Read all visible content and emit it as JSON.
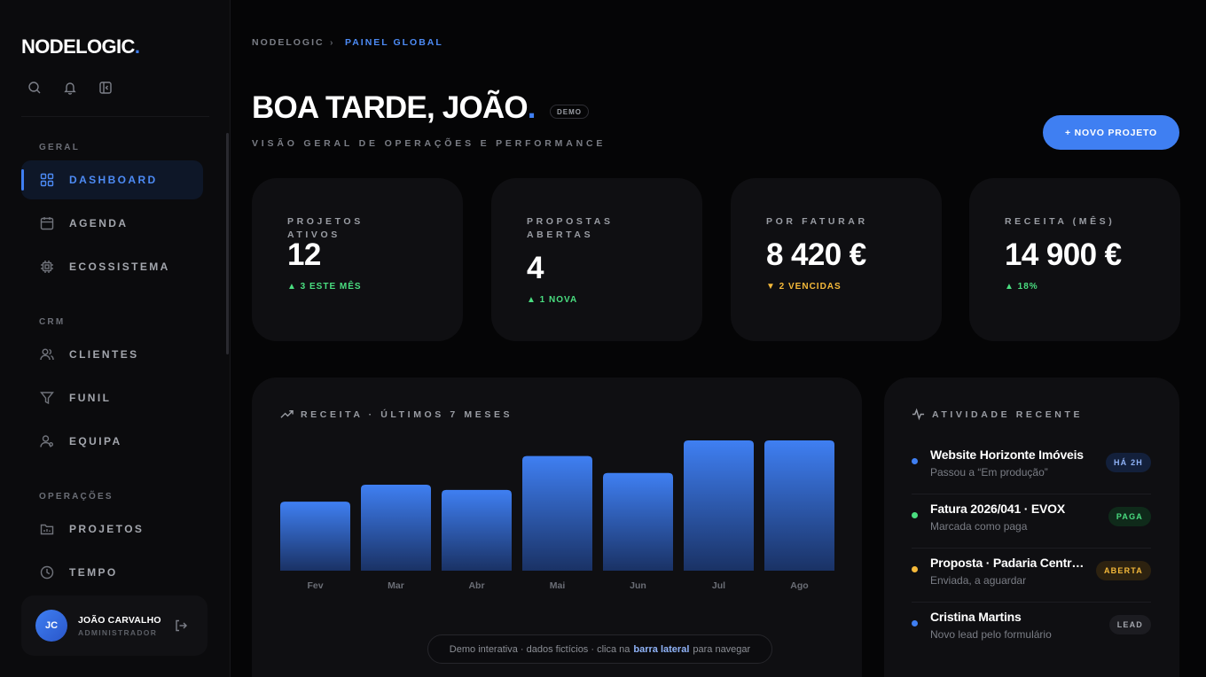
{
  "app": {
    "logo_text": "NODELOGIC",
    "logo_dot": ".",
    "accent": "#3f7ff2"
  },
  "sidebar": {
    "tools": [
      {
        "icon": "search-icon"
      },
      {
        "icon": "bell-icon"
      },
      {
        "icon": "sidebar-toggle-icon"
      }
    ],
    "sections": [
      {
        "label": "GERAL",
        "items": [
          {
            "label": "DASHBOARD",
            "icon": "grid-icon",
            "active": true
          },
          {
            "label": "AGENDA",
            "icon": "calendar-icon"
          },
          {
            "label": "ECOSSISTEMA",
            "icon": "chip-icon"
          }
        ]
      },
      {
        "label": "CRM",
        "items": [
          {
            "label": "CLIENTES",
            "icon": "users-icon"
          },
          {
            "label": "FUNIL",
            "icon": "funnel-icon"
          },
          {
            "label": "EQUIPA",
            "icon": "team-icon"
          }
        ]
      },
      {
        "label": "OPERAÇÕES",
        "items": [
          {
            "label": "PROJETOS",
            "icon": "folder-icon"
          },
          {
            "label": "TEMPO",
            "icon": "clock-icon"
          }
        ]
      }
    ],
    "user": {
      "initials": "JC",
      "name": "JOÃO CARVALHO",
      "role": "ADMINISTRADOR"
    }
  },
  "header": {
    "breadcrumb_root": "NODELOGIC",
    "breadcrumb_sep": "›",
    "breadcrumb_current": "PAINEL GLOBAL",
    "greeting": "BOA TARDE, JOÃO",
    "greeting_dot": ".",
    "demo_badge": "DEMO",
    "subtitle": "VISÃO GERAL DE OPERAÇÕES E PERFORMANCE",
    "new_project_label": "+ NOVO PROJETO"
  },
  "kpis": [
    {
      "label": "PROJETOS ATIVOS",
      "value": "12",
      "trend": "▲ 3 ESTE MÊS",
      "trend_color": "#4ade80"
    },
    {
      "label": "PROPOSTAS ABERTAS",
      "value": "4",
      "trend": "▲ 1 NOVA",
      "trend_color": "#4ade80"
    },
    {
      "label": "POR FATURAR",
      "value": "8 420 €",
      "trend": "▼ 2 VENCIDAS",
      "trend_color": "#f5b93a"
    },
    {
      "label": "RECEITA (MÊS)",
      "value": "14 900 €",
      "trend": "▲ 18%",
      "trend_color": "#4ade80"
    }
  ],
  "chart": {
    "title": "RECEITA · ÚLTIMOS 7 MESES"
  },
  "chart_data": {
    "type": "bar",
    "title": "RECEITA · ÚLTIMOS 7 MESES",
    "categories": [
      "Fev",
      "Mar",
      "Abr",
      "Mai",
      "Jun",
      "Jul",
      "Ago"
    ],
    "values": [
      0.53,
      0.66,
      0.62,
      0.88,
      0.75,
      1.0,
      1.0
    ],
    "ylim": [
      0,
      1
    ],
    "grid": false,
    "bar_color_top": "#3f7ff2",
    "bar_color_bottom": "#1a3265"
  },
  "footer_note": {
    "pre": "Demo interativa · dados fictícios · clica na",
    "highlight": "barra lateral",
    "post": "para navegar"
  },
  "activity": {
    "title": "ATIVIDADE RECENTE",
    "items": [
      {
        "title": "Website Horizonte Imóveis",
        "subtitle": "Passou a “Em produção”",
        "badge": "HÁ 2H",
        "dot": "#3f7ff2",
        "badge_bg": "#13203b",
        "badge_fg": "#8fb2f7"
      },
      {
        "title": "Fatura 2026/041 · EVOX",
        "subtitle": "Marcada como paga",
        "badge": "PAGA",
        "dot": "#4ade80",
        "badge_bg": "#0f2a1a",
        "badge_fg": "#4ade80"
      },
      {
        "title": "Proposta · Padaria Central Lisboa",
        "subtitle": "Enviada, a aguardar",
        "badge": "ABERTA",
        "dot": "#f5b93a",
        "badge_bg": "#2d2210",
        "badge_fg": "#f5b93a"
      },
      {
        "title": "Cristina Martins",
        "subtitle": "Novo lead pelo formulário",
        "badge": "LEAD",
        "dot": "#3f7ff2",
        "badge_bg": "#1c1c21",
        "badge_fg": "#a3a6ad"
      }
    ]
  }
}
